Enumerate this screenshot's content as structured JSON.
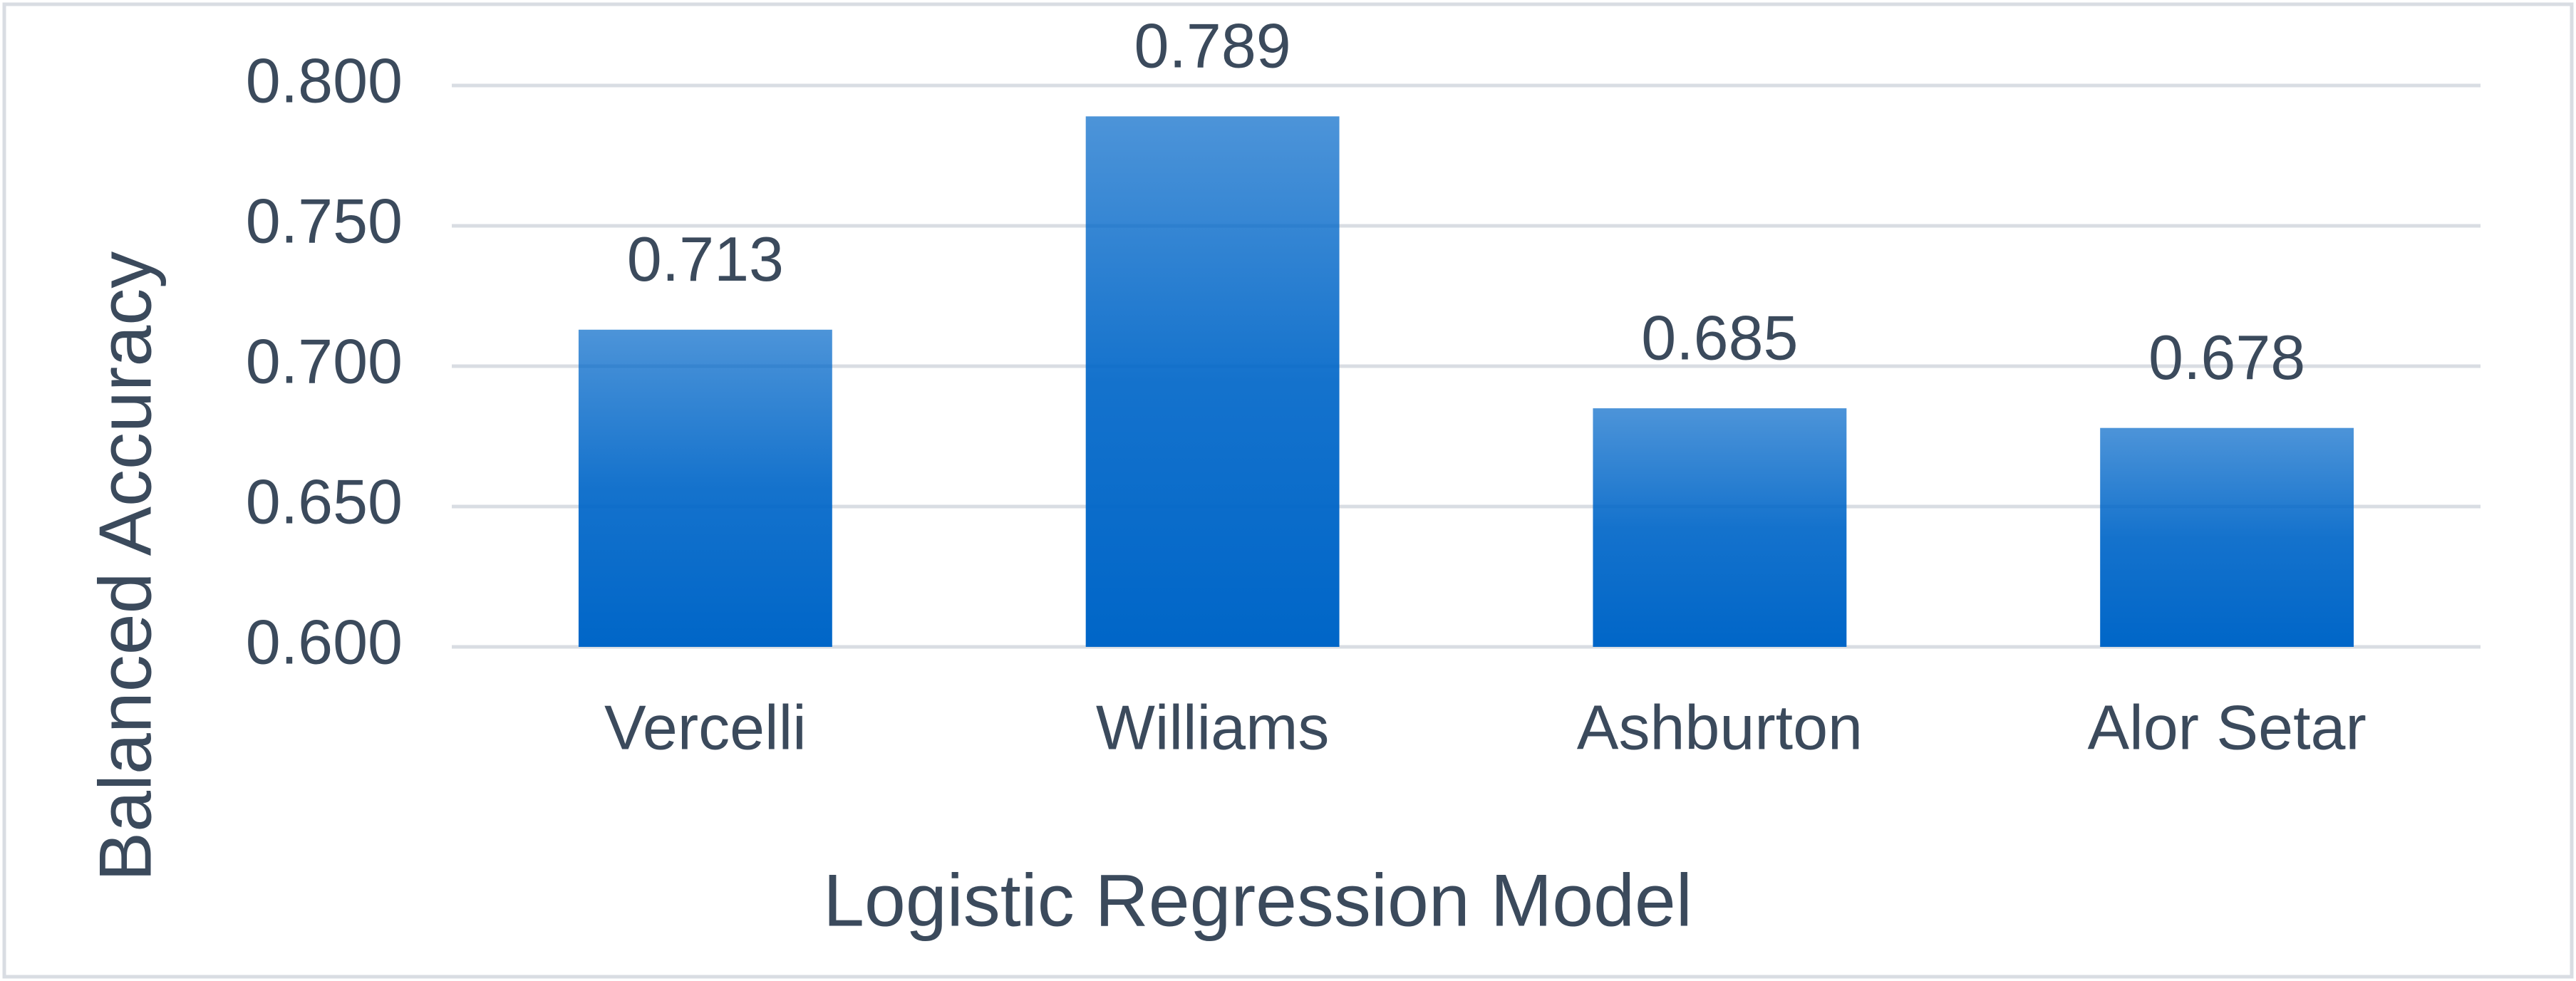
{
  "chart_data": {
    "type": "bar",
    "categories": [
      "Vercelli",
      "Williams",
      "Ashburton",
      "Alor Setar"
    ],
    "values": [
      0.713,
      0.789,
      0.685,
      0.678
    ],
    "color": "#0066c8",
    "x_label": "Logistic Regression Model",
    "y_label": "Balanced Accuracy",
    "ylim": [
      0.6,
      0.8
    ],
    "yticks": [
      {
        "value": 0.6,
        "label": "0.600"
      },
      {
        "value": 0.65,
        "label": "0.650"
      },
      {
        "value": 0.7,
        "label": "0.700"
      },
      {
        "value": 0.75,
        "label": "0.750"
      },
      {
        "value": 0.8,
        "label": "0.800"
      }
    ],
    "grid": true
  }
}
